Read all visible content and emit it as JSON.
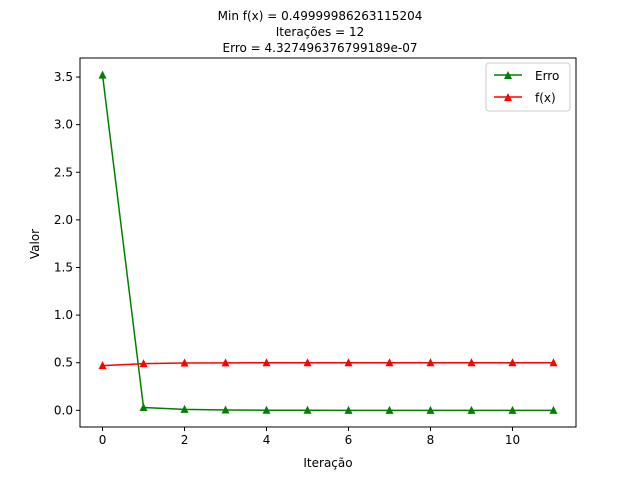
{
  "chart_data": {
    "type": "line",
    "title_lines": [
      "Min f(x) = 0.49999986263115204",
      "Iterações = 12",
      "Erro = 4.327496376799189e-07"
    ],
    "xlabel": "Iteração",
    "ylabel": "Valor",
    "xlim": [
      -0.55,
      11.55
    ],
    "ylim": [
      -0.175,
      3.7
    ],
    "xticks": [
      0,
      2,
      4,
      6,
      8,
      10
    ],
    "yticks": [
      0.0,
      0.5,
      1.0,
      1.5,
      2.0,
      2.5,
      3.0,
      3.5
    ],
    "x": [
      0,
      1,
      2,
      3,
      4,
      5,
      6,
      7,
      8,
      9,
      10,
      11
    ],
    "series": [
      {
        "name": "Erro",
        "color": "#008000",
        "marker": "triangle-up",
        "values": [
          3.52,
          0.03,
          0.01,
          0.003,
          0.001,
          0.0004,
          0.0001,
          5e-05,
          2e-05,
          1e-05,
          5e-06,
          4e-07
        ]
      },
      {
        "name": "f(x)",
        "color": "#ff0000",
        "marker": "triangle-up",
        "values": [
          0.47,
          0.49,
          0.497,
          0.499,
          0.4997,
          0.4999,
          0.49997,
          0.49999,
          0.499995,
          0.499998,
          0.4999995,
          0.4999999
        ]
      }
    ],
    "legend_position": "upper right",
    "grid": false
  }
}
